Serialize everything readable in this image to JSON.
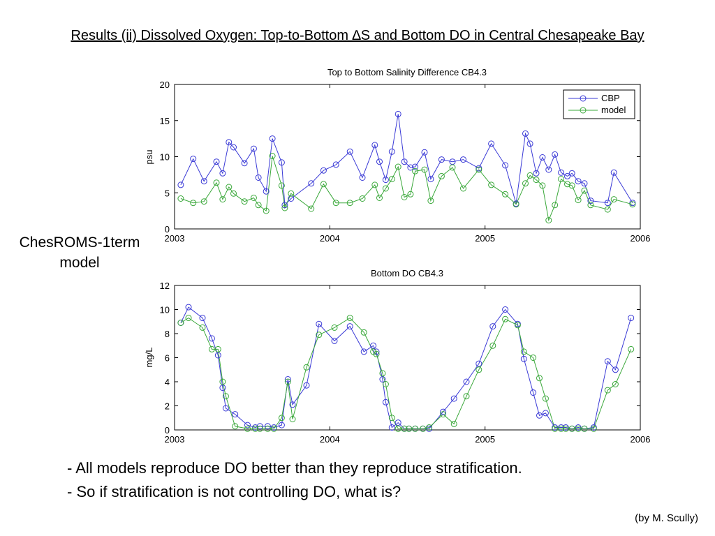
{
  "slide": {
    "title": "Results (ii) Dissolved Oxygen: Top-to-Bottom ∆S and Bottom DO in Central Chesapeake Bay",
    "side_label_line1": "ChesROMS-1term",
    "side_label_line2": "model",
    "bullets": [
      "- All models reproduce DO better than they reproduce stratification.",
      "- So if stratification is not controlling DO, what is?"
    ],
    "credit": "(by M. Scully)"
  },
  "colors": {
    "cbp": "#3a3ad6",
    "model": "#3aa83a"
  },
  "chart_data": [
    {
      "type": "line",
      "title": "Top to Bottom Salinity Difference CB4.3",
      "xlabel": "",
      "ylabel": "psu",
      "xlim": [
        2003,
        2006
      ],
      "ylim": [
        0,
        20
      ],
      "xticks": [
        2003,
        2004,
        2005,
        2006
      ],
      "yticks": [
        0,
        5,
        10,
        15,
        20
      ],
      "legend": "top-right",
      "grid": false,
      "series": [
        {
          "name": "CBP",
          "x": [
            2003.04,
            2003.12,
            2003.19,
            2003.27,
            2003.31,
            2003.35,
            2003.38,
            2003.45,
            2003.51,
            2003.54,
            2003.59,
            2003.63,
            2003.69,
            2003.71,
            2003.75,
            2003.88,
            2003.96,
            2004.04,
            2004.13,
            2004.21,
            2004.29,
            2004.32,
            2004.36,
            2004.4,
            2004.44,
            2004.48,
            2004.52,
            2004.55,
            2004.61,
            2004.65,
            2004.72,
            2004.79,
            2004.86,
            2004.96,
            2005.04,
            2005.13,
            2005.2,
            2005.26,
            2005.29,
            2005.33,
            2005.37,
            2005.41,
            2005.45,
            2005.49,
            2005.53,
            2005.56,
            2005.6,
            2005.64,
            2005.68,
            2005.79,
            2005.83,
            2005.95
          ],
          "values": [
            6.1,
            9.7,
            6.6,
            9.3,
            7.7,
            12.0,
            11.3,
            9.1,
            11.1,
            7.1,
            5.2,
            12.5,
            9.2,
            3.3,
            4.2,
            6.3,
            8.1,
            8.9,
            10.7,
            7.1,
            11.6,
            9.3,
            6.8,
            10.7,
            15.9,
            9.3,
            8.5,
            8.6,
            10.6,
            6.9,
            9.6,
            9.3,
            9.6,
            8.4,
            11.8,
            8.8,
            3.5,
            13.2,
            11.8,
            7.7,
            9.9,
            8.2,
            10.3,
            7.8,
            7.3,
            7.7,
            6.6,
            6.3,
            3.9,
            3.6,
            7.8,
            3.6
          ]
        },
        {
          "name": "model",
          "x": [
            2003.04,
            2003.12,
            2003.19,
            2003.27,
            2003.31,
            2003.35,
            2003.38,
            2003.45,
            2003.51,
            2003.54,
            2003.59,
            2003.63,
            2003.69,
            2003.71,
            2003.75,
            2003.88,
            2003.96,
            2004.04,
            2004.13,
            2004.21,
            2004.29,
            2004.32,
            2004.36,
            2004.4,
            2004.44,
            2004.48,
            2004.52,
            2004.55,
            2004.61,
            2004.65,
            2004.72,
            2004.79,
            2004.86,
            2004.96,
            2005.04,
            2005.13,
            2005.2,
            2005.26,
            2005.29,
            2005.33,
            2005.37,
            2005.41,
            2005.45,
            2005.49,
            2005.53,
            2005.56,
            2005.6,
            2005.64,
            2005.68,
            2005.79,
            2005.83,
            2005.95
          ],
          "values": [
            4.2,
            3.6,
            3.8,
            6.4,
            4.1,
            5.8,
            4.9,
            3.8,
            4.3,
            3.3,
            2.5,
            10.1,
            6.0,
            2.9,
            4.9,
            2.8,
            6.2,
            3.6,
            3.6,
            4.2,
            6.1,
            4.3,
            5.6,
            6.9,
            8.6,
            4.4,
            4.8,
            8.0,
            8.2,
            3.9,
            7.3,
            8.5,
            5.6,
            8.2,
            6.1,
            4.8,
            3.4,
            6.3,
            7.4,
            6.8,
            6.0,
            1.2,
            3.3,
            6.9,
            6.2,
            6.0,
            4.0,
            5.3,
            3.3,
            2.7,
            4.1,
            3.4
          ]
        }
      ]
    },
    {
      "type": "line",
      "title": "Bottom DO CB4.3",
      "xlabel": "",
      "ylabel": "mg/L",
      "xlim": [
        2003,
        2006
      ],
      "ylim": [
        0,
        12
      ],
      "xticks": [
        2003,
        2004,
        2005,
        2006
      ],
      "yticks": [
        0,
        2,
        4,
        6,
        8,
        10,
        12
      ],
      "grid": false,
      "series": [
        {
          "name": "CBP",
          "x": [
            2003.04,
            2003.09,
            2003.18,
            2003.24,
            2003.28,
            2003.31,
            2003.33,
            2003.39,
            2003.47,
            2003.52,
            2003.55,
            2003.6,
            2003.64,
            2003.69,
            2003.73,
            2003.76,
            2003.85,
            2003.93,
            2004.03,
            2004.13,
            2004.22,
            2004.28,
            2004.3,
            2004.34,
            2004.36,
            2004.4,
            2004.44,
            2004.48,
            2004.51,
            2004.55,
            2004.6,
            2004.64,
            2004.73,
            2004.8,
            2004.88,
            2004.96,
            2005.05,
            2005.13,
            2005.21,
            2005.25,
            2005.31,
            2005.35,
            2005.39,
            2005.45,
            2005.49,
            2005.52,
            2005.56,
            2005.6,
            2005.64,
            2005.7,
            2005.79,
            2005.84,
            2005.94
          ],
          "values": [
            8.9,
            10.2,
            9.3,
            7.6,
            6.2,
            3.5,
            1.8,
            1.3,
            0.4,
            0.2,
            0.3,
            0.3,
            0.2,
            0.4,
            4.2,
            2.1,
            3.7,
            8.8,
            7.4,
            8.6,
            6.5,
            7.0,
            6.5,
            4.2,
            2.3,
            0.2,
            0.6,
            0.1,
            0.1,
            0.1,
            0.1,
            0.1,
            1.5,
            2.6,
            4.0,
            5.5,
            8.6,
            10.0,
            8.8,
            5.9,
            3.1,
            1.2,
            1.4,
            0.2,
            0.2,
            0.2,
            0.1,
            0.2,
            0.1,
            0.2,
            5.7,
            5.0,
            9.3
          ]
        },
        {
          "name": "model",
          "x": [
            2003.04,
            2003.09,
            2003.18,
            2003.24,
            2003.28,
            2003.31,
            2003.33,
            2003.39,
            2003.47,
            2003.52,
            2003.55,
            2003.6,
            2003.64,
            2003.69,
            2003.73,
            2003.76,
            2003.85,
            2003.93,
            2004.03,
            2004.13,
            2004.22,
            2004.28,
            2004.3,
            2004.34,
            2004.36,
            2004.4,
            2004.44,
            2004.48,
            2004.51,
            2004.55,
            2004.6,
            2004.64,
            2004.73,
            2004.8,
            2004.88,
            2004.96,
            2005.05,
            2005.13,
            2005.21,
            2005.25,
            2005.31,
            2005.35,
            2005.39,
            2005.45,
            2005.49,
            2005.52,
            2005.56,
            2005.6,
            2005.64,
            2005.7,
            2005.79,
            2005.84,
            2005.94
          ],
          "values": [
            8.9,
            9.3,
            8.5,
            6.7,
            6.7,
            4.0,
            2.8,
            0.3,
            0.1,
            0.1,
            0.1,
            0.1,
            0.1,
            1.0,
            4.0,
            0.9,
            5.2,
            7.9,
            8.5,
            9.3,
            8.1,
            6.5,
            6.3,
            4.7,
            3.8,
            1.0,
            0.1,
            0.1,
            0.1,
            0.1,
            0.1,
            0.2,
            1.3,
            0.5,
            2.8,
            5.0,
            7.0,
            9.2,
            8.7,
            6.5,
            6.0,
            4.3,
            2.6,
            0.1,
            0.1,
            0.1,
            0.1,
            0.1,
            0.1,
            0.1,
            3.3,
            3.8,
            6.7
          ]
        }
      ]
    }
  ]
}
